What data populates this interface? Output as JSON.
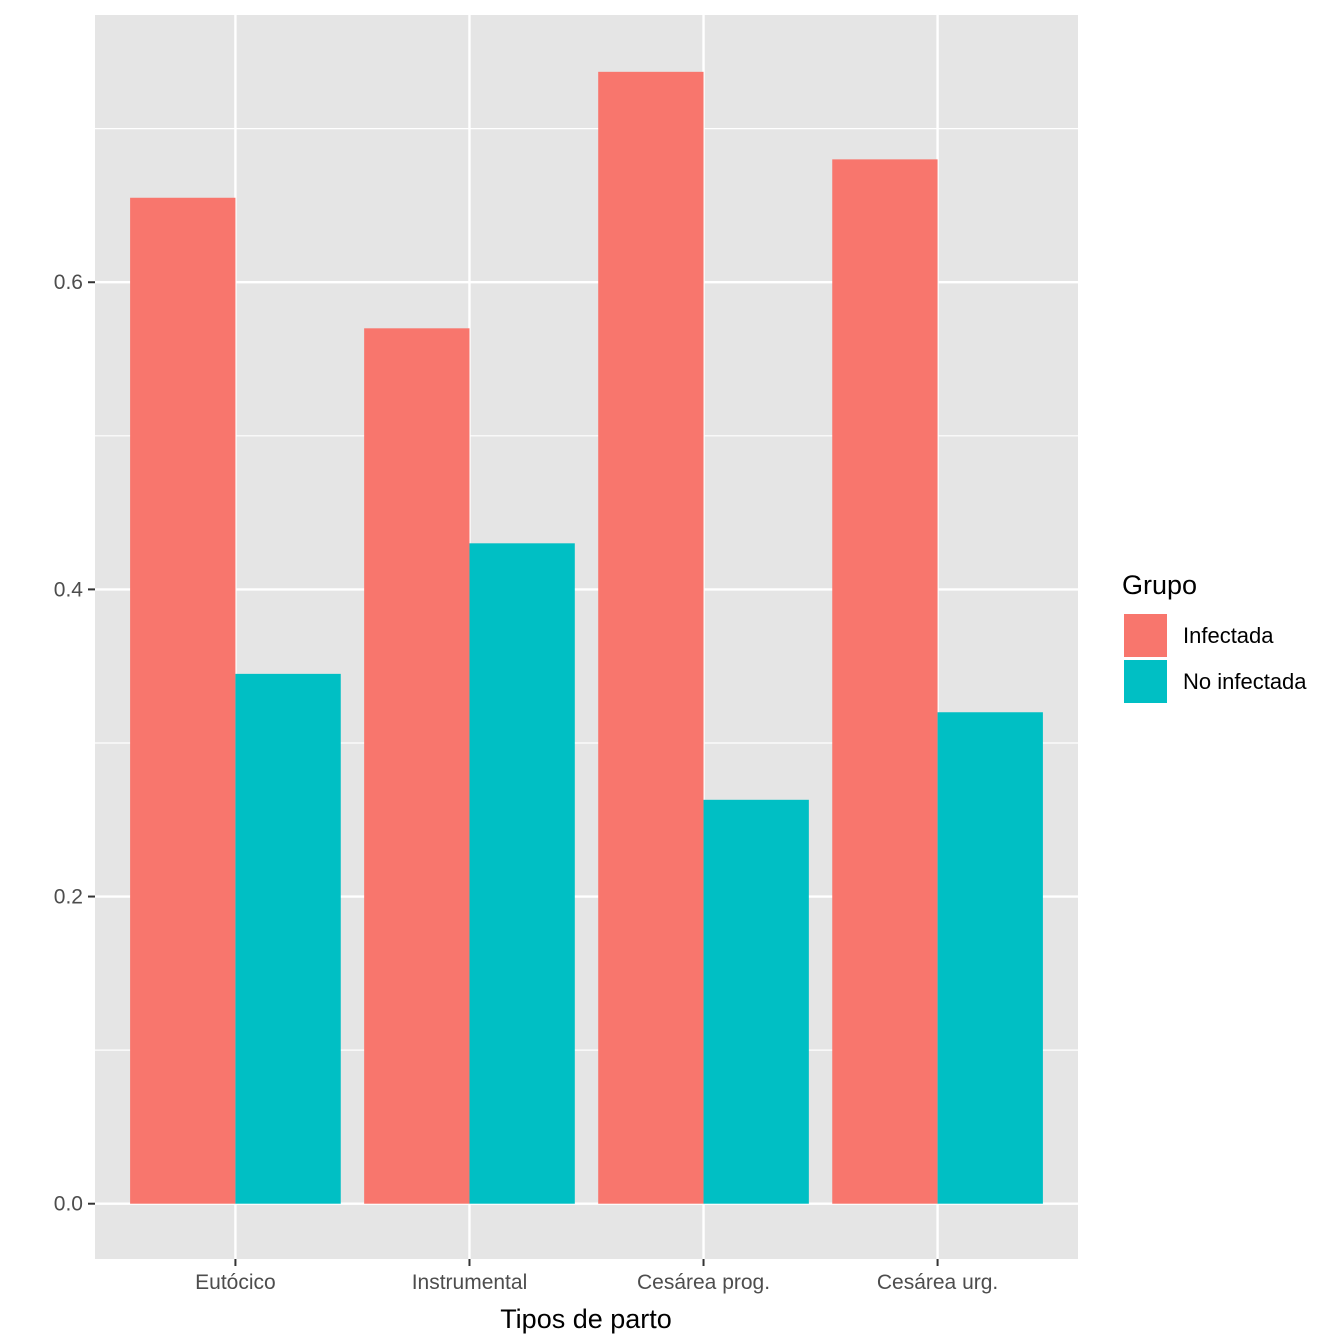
{
  "chart_data": {
    "type": "bar",
    "title": "",
    "xlabel": "Tipos de parto",
    "ylabel": "",
    "categories": [
      "Eutócico",
      "Instrumental",
      "Cesárea prog.",
      "Cesárea urg."
    ],
    "series": [
      {
        "name": "Infectada",
        "color": "#F8766D",
        "values": [
          0.655,
          0.57,
          0.737,
          0.68
        ]
      },
      {
        "name": "No infectada",
        "color": "#00BFC4",
        "values": [
          0.345,
          0.43,
          0.263,
          0.32
        ]
      }
    ],
    "ylim": [
      -0.036,
      0.774
    ],
    "yticks": [
      0.0,
      0.2,
      0.4,
      0.6
    ],
    "ytick_labels": [
      "0.0",
      "0.2",
      "0.4",
      "0.6"
    ],
    "grid": true,
    "legend": {
      "title": "Grupo",
      "position": "right"
    },
    "colors": {
      "panel": "#E5E5E5",
      "grid": "#FFFFFF",
      "tick_text": "#4D4D4D"
    }
  }
}
